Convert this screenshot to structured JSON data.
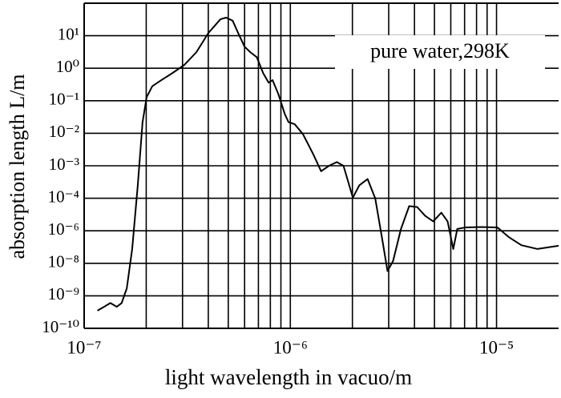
{
  "chart_data": {
    "type": "line",
    "xlabel": "light wavelength in vacuo/m",
    "ylabel": "absorption length L/m",
    "annotation": "pure water,298K",
    "xlog": true,
    "ylog": true,
    "grid": true,
    "xlim": [
      1e-07,
      2e-05
    ],
    "ylim": [
      1e-10,
      100
    ],
    "xticks": [
      {
        "value": 1e-07,
        "label": "10⁻⁷"
      },
      {
        "value": 1e-06,
        "label": "10⁻⁶"
      },
      {
        "value": 1e-05,
        "label": "10⁻⁵"
      }
    ],
    "xgrid": [
      2e-07,
      3e-07,
      4e-07,
      5e-07,
      6e-07,
      7e-07,
      8e-07,
      9e-07,
      2e-06,
      3e-06,
      4e-06,
      5e-06,
      6e-06,
      7e-06,
      8e-06,
      9e-06
    ],
    "yticks": [
      {
        "value": 1e-10,
        "label": "10⁻¹⁰"
      },
      {
        "value": 1e-09,
        "label": "10⁻⁹"
      },
      {
        "value": 1e-08,
        "label": "10⁻⁸"
      },
      {
        "value": 1e-06,
        "label": "10⁻⁶"
      },
      {
        "value": 0.0001,
        "label": "10⁻⁴"
      },
      {
        "value": 0.001,
        "label": "10⁻³"
      },
      {
        "value": 0.01,
        "label": "10⁻²"
      },
      {
        "value": 0.1,
        "label": "10⁻¹"
      },
      {
        "value": 1,
        "label": "10⁰"
      },
      {
        "value": 10,
        "label": "10¹"
      }
    ],
    "color": "#000000",
    "x": [
      1.16e-07,
      1.25e-07,
      1.34e-07,
      1.44e-07,
      1.52e-07,
      1.61e-07,
      1.71e-07,
      1.82e-07,
      1.92e-07,
      2.01e-07,
      2.14e-07,
      2.34e-07,
      2.68e-07,
      3.06e-07,
      3.5e-07,
      4e-07,
      4.58e-07,
      4.88e-07,
      5.25e-07,
      5.64e-07,
      6e-07,
      6.4e-07,
      6.87e-07,
      7.38e-07,
      7.85e-07,
      8.2e-07,
      8.75e-07,
      9.4e-07,
      9.8e-07,
      1.05e-06,
      1.15e-06,
      1.29e-06,
      1.41e-06,
      1.54e-06,
      1.68e-06,
      1.81e-06,
      2.01e-06,
      2.16e-06,
      2.37e-06,
      2.58e-06,
      2.78e-06,
      2.96e-06,
      3.15e-06,
      3.44e-06,
      3.77e-06,
      4.12e-06,
      4.51e-06,
      4.93e-06,
      5.4e-06,
      5.79e-06,
      6.17e-06,
      6.45e-06,
      7.05e-06,
      8.43e-06,
      1.01e-05,
      1.15e-05,
      1.32e-05,
      1.58e-05,
      2e-05
    ],
    "values": [
      3.5e-10,
      4.6e-10,
      6e-10,
      4.6e-10,
      6e-10,
      1.7e-09,
      7.6e-08,
      0.00025,
      0.022,
      0.13,
      0.28,
      0.41,
      0.71,
      1.26,
      3.1,
      12,
      32,
      36,
      29,
      10.5,
      4.6,
      3.1,
      2.2,
      0.71,
      0.36,
      0.43,
      0.16,
      0.039,
      0.022,
      0.019,
      0.0095,
      0.0023,
      0.00068,
      0.001,
      0.0013,
      0.001,
      0.000105,
      0.00025,
      0.00039,
      0.0001,
      4e-07,
      5.8e-09,
      1.4e-08,
      1.3e-06,
      3.3e-05,
      2.9e-05,
      8.3e-06,
      3.8e-06,
      1.3e-05,
      3.8e-06,
      7.6e-08,
      1.3e-06,
      1.6e-06,
      1.7e-06,
      1.6e-06,
      4e-07,
      1.3e-07,
      7.6e-08,
      1.2e-07
    ]
  }
}
